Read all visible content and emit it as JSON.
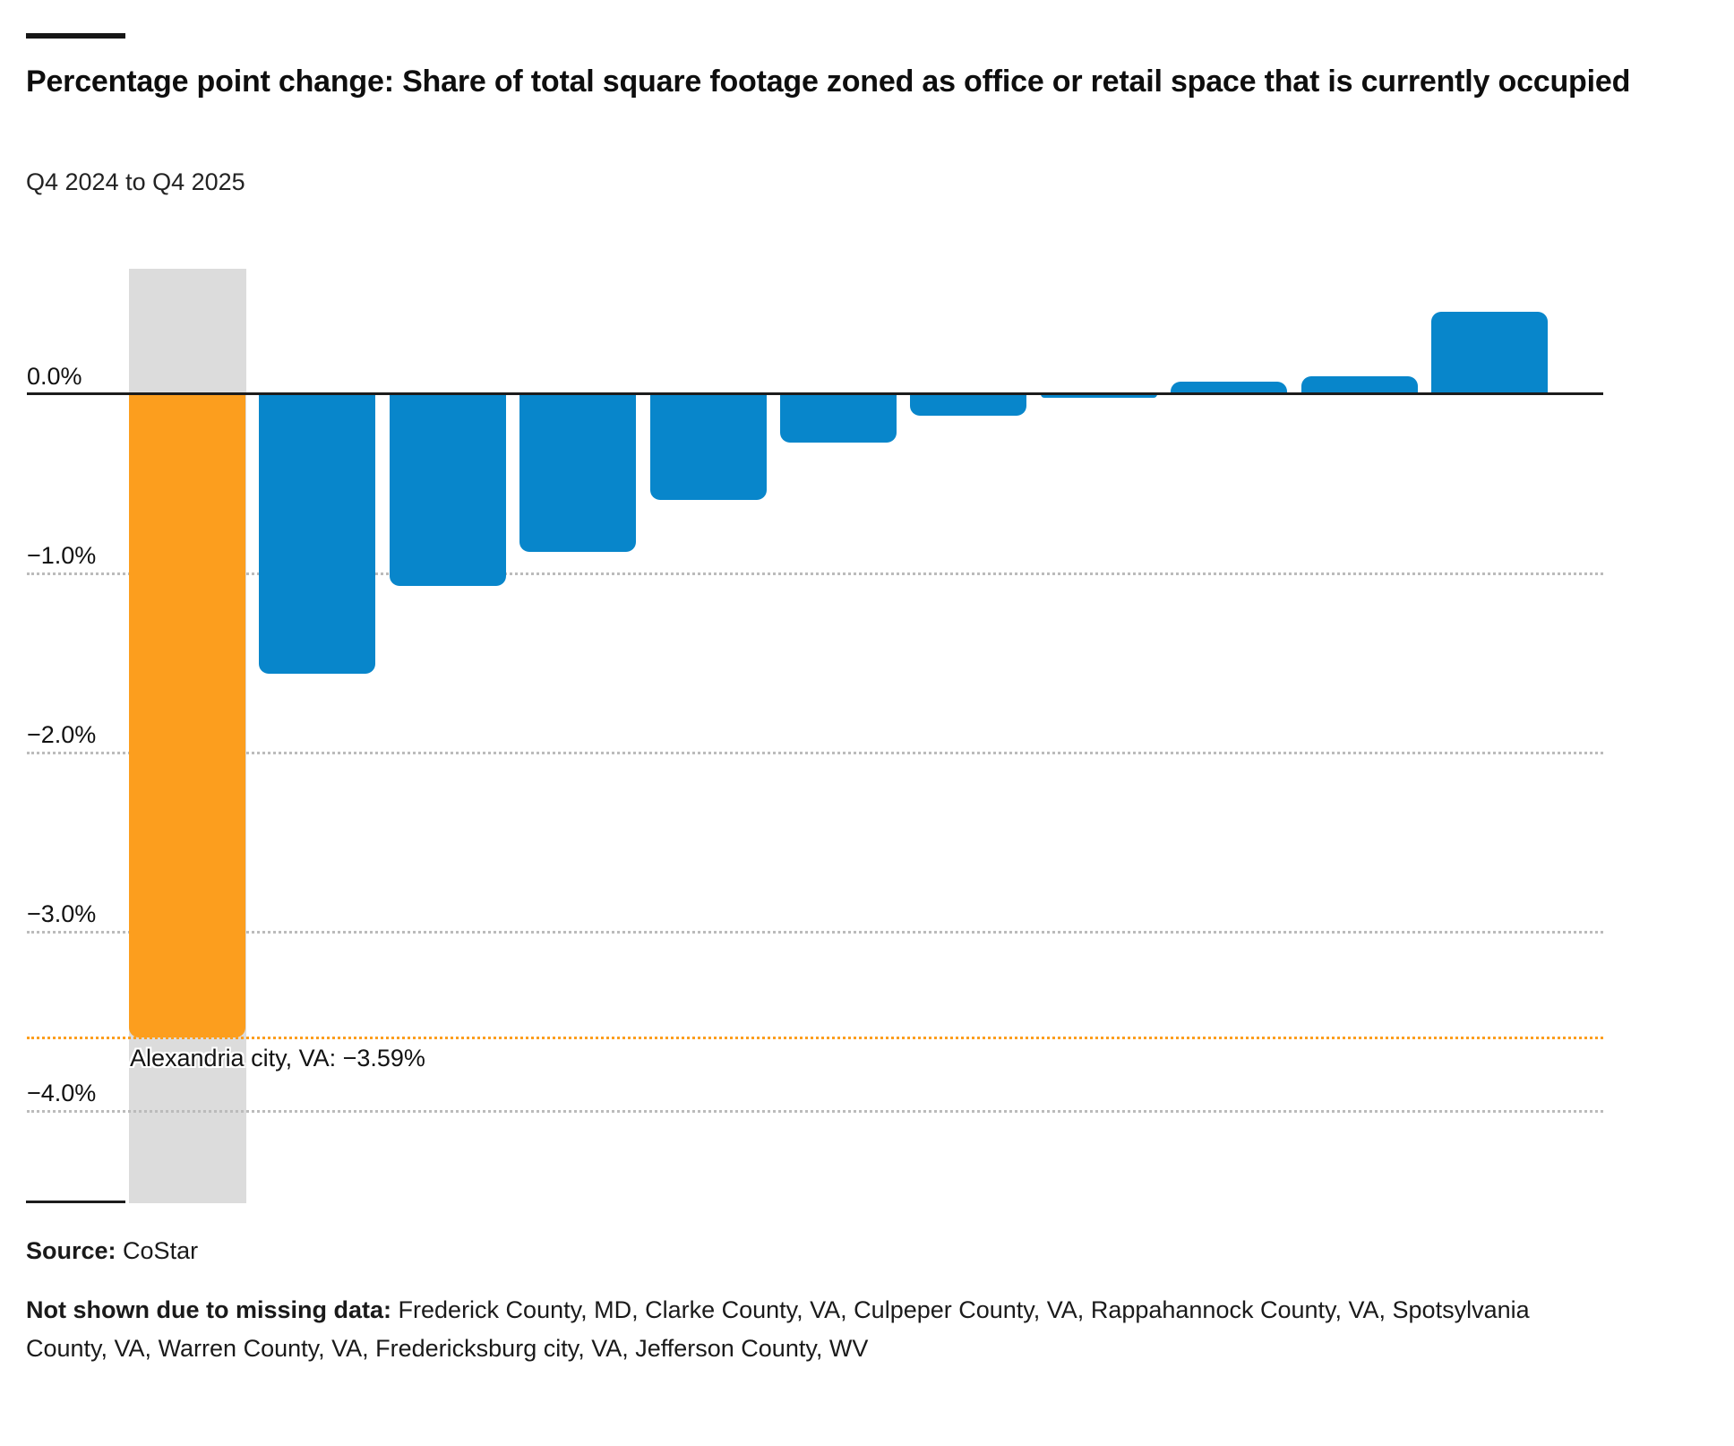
{
  "header": {
    "title": "Percentage point change: Share of total square footage zoned as office or retail space that is currently occupied",
    "subtitle": "Q4 2024 to Q4 2025"
  },
  "chart_data": {
    "type": "bar",
    "title": "Percentage point change: Share of total square footage zoned as office or retail space that is currently occupied",
    "subtitle": "Q4 2024 to Q4 2025",
    "unit": "percentage points",
    "orientation": "vertical",
    "grid": "horizontal-dotted",
    "legend_position": "none",
    "xlabel": "",
    "ylabel": "",
    "ylim": [
      0.7,
      -4.52
    ],
    "y_ticks": [
      {
        "label": "0.0%",
        "value": 0
      },
      {
        "label": "−1.0%",
        "value": -1
      },
      {
        "label": "−2.0%",
        "value": -2
      },
      {
        "label": "−3.0%",
        "value": -3
      },
      {
        "label": "−4.0%",
        "value": -4
      }
    ],
    "bars": [
      {
        "value": -3.59,
        "highlight": true,
        "label": "Alexandria city, VA"
      },
      {
        "value": -1.56
      },
      {
        "value": -1.07
      },
      {
        "value": -0.88
      },
      {
        "value": -0.59
      },
      {
        "value": -0.27
      },
      {
        "value": -0.12
      },
      {
        "value": -0.02
      },
      {
        "value": 0.07
      },
      {
        "value": 0.1
      },
      {
        "value": 0.46
      }
    ],
    "annotation": {
      "text": "Alexandria city, VA: −3.59%",
      "value": -3.59
    },
    "colors": {
      "bar": "#0886CB",
      "highlight": "#FC9E1E",
      "band": "#DCDCDC",
      "gridline": "#BBBBBB",
      "axis": "#1C1C1C",
      "annotation_line": "#FC9E1E"
    }
  },
  "footer": {
    "source_label": "Source:",
    "source": "CoStar",
    "note_label": "Not shown due to missing data:",
    "note": "Frederick County, MD, Clarke County, VA, Culpeper County, VA, Rappahannock County, VA, Spotsylvania County, VA, Warren County, VA, Fredericksburg city, VA, Jefferson County, WV"
  }
}
